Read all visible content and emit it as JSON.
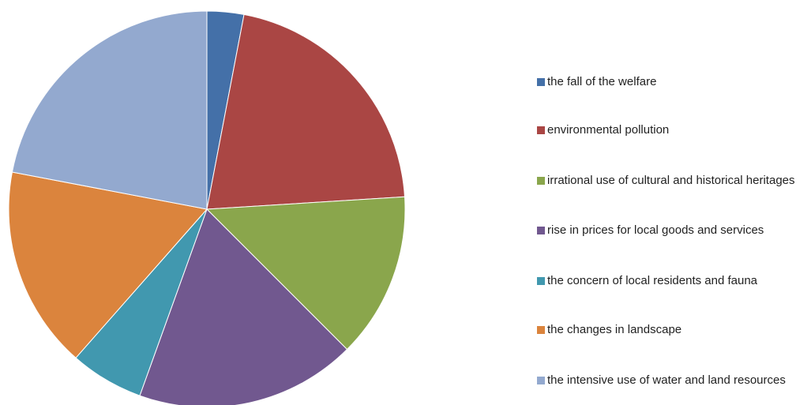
{
  "chart_data": {
    "type": "pie",
    "categories": [
      "the fall of the welfare",
      "environmental pollution",
      "irrational use of cultural and historical heritages",
      "rise in prices for local goods and services",
      "the concern of local residents and fauna",
      "the changes in landscape",
      "the intensive use of water and land resources"
    ],
    "values": [
      3,
      21,
      13.5,
      18,
      6,
      16.5,
      22
    ],
    "colors": [
      "#4470a8",
      "#aa4644",
      "#8aa64c",
      "#71588f",
      "#4198af",
      "#db843d",
      "#93a9cf"
    ],
    "legend": "right"
  }
}
